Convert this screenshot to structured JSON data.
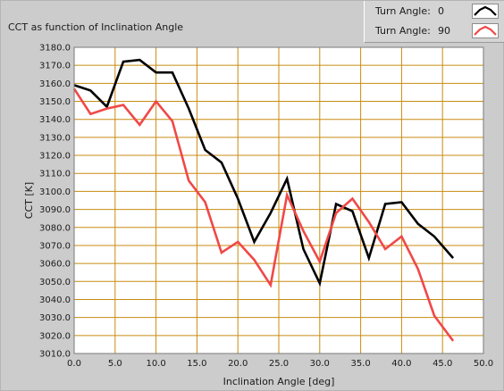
{
  "chart_data": {
    "type": "line",
    "title": "CCT as function of Inclination Angle",
    "xlabel": "Inclination Angle [deg]",
    "ylabel": "CCT [K]",
    "xlim": [
      0,
      50
    ],
    "ylim": [
      3010,
      3180
    ],
    "xticks": [
      "0.0",
      "5.0",
      "10.0",
      "15.0",
      "20.0",
      "25.0",
      "30.0",
      "35.0",
      "40.0",
      "45.0",
      "50.0"
    ],
    "yticks": [
      "3010.0",
      "3020.0",
      "3030.0",
      "3040.0",
      "3050.0",
      "3060.0",
      "3070.0",
      "3080.0",
      "3090.0",
      "3100.0",
      "3110.0",
      "3120.0",
      "3130.0",
      "3140.0",
      "3150.0",
      "3160.0",
      "3170.0",
      "3180.0"
    ],
    "grid": true,
    "legend": "top-right",
    "colors": {
      "background": "#cccccc",
      "plot_background": "#ffffff",
      "grid": "#c88c10"
    },
    "series": [
      {
        "name": "Turn Angle:",
        "legend_value": "0",
        "color": "#000000",
        "x": [
          0,
          2,
          4,
          6,
          8,
          10,
          12,
          14,
          16,
          18,
          20,
          22,
          24,
          26,
          28,
          30,
          32,
          34,
          36,
          38,
          40,
          42,
          44,
          46.3
        ],
        "y": [
          3159,
          3156,
          3147,
          3172,
          3173,
          3166,
          3166,
          3146,
          3123,
          3116,
          3096,
          3072,
          3088,
          3107,
          3068,
          3049,
          3093,
          3089,
          3063,
          3093,
          3094,
          3082,
          3075,
          3063
        ]
      },
      {
        "name": "Turn Angle:",
        "legend_value": "90",
        "color": "#f04848",
        "x": [
          0,
          2,
          4,
          6,
          8,
          10,
          12,
          14,
          16,
          18,
          20,
          22,
          24,
          26,
          28,
          30,
          32,
          34,
          36,
          38,
          40,
          42,
          44,
          46.3
        ],
        "y": [
          3157,
          3143,
          3146,
          3148,
          3137,
          3150,
          3139,
          3106,
          3094,
          3066,
          3072,
          3062,
          3048,
          3098,
          3078,
          3061,
          3088,
          3096,
          3083,
          3068,
          3075,
          3057,
          3031,
          3017
        ]
      }
    ]
  }
}
